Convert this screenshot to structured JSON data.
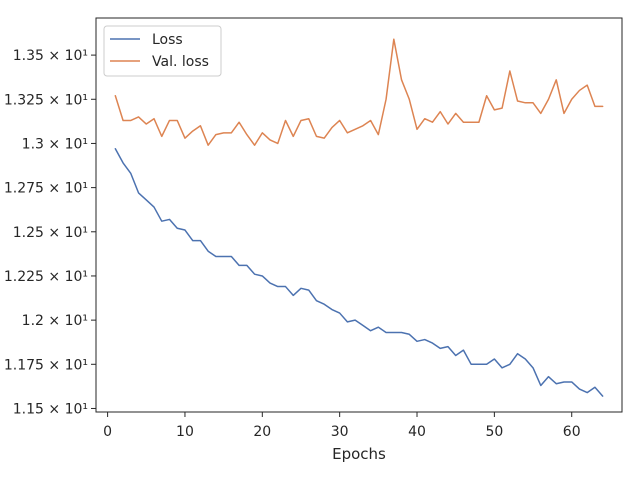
{
  "chart_data": {
    "type": "line",
    "title": "",
    "xlabel": "Epochs",
    "ylabel": "",
    "xlim": [
      -1.5,
      66.5
    ],
    "ylim": [
      11.48,
      13.71
    ],
    "xticks": [
      0,
      10,
      20,
      30,
      40,
      50,
      60
    ],
    "xtick_labels": [
      "0",
      "10",
      "20",
      "30",
      "40",
      "50",
      "60"
    ],
    "yticks": [
      11.5,
      11.75,
      12.0,
      12.25,
      12.5,
      12.75,
      13.0,
      13.25,
      13.5
    ],
    "ytick_labels": [
      "1.15 × 10¹",
      "1.175 × 10¹",
      "1.2 × 10¹",
      "1.225 × 10¹",
      "1.25 × 10¹",
      "1.275 × 10¹",
      "1.3 × 10¹",
      "1.325 × 10¹",
      "1.35 × 10¹"
    ],
    "grid": false,
    "legend_position": "top-left",
    "series": [
      {
        "name": "Loss",
        "color": "#4c72b0",
        "x": [
          1,
          2,
          3,
          4,
          5,
          6,
          7,
          8,
          9,
          10,
          11,
          12,
          13,
          14,
          15,
          16,
          17,
          18,
          19,
          20,
          21,
          22,
          23,
          24,
          25,
          26,
          27,
          28,
          29,
          30,
          31,
          32,
          33,
          34,
          35,
          36,
          37,
          38,
          39,
          40,
          41,
          42,
          43,
          44,
          45,
          46,
          47,
          48,
          49,
          50,
          51,
          52,
          53,
          54,
          55,
          56,
          57,
          58,
          59,
          60,
          61,
          62,
          63,
          64
        ],
        "values": [
          12.97,
          12.89,
          12.83,
          12.72,
          12.68,
          12.64,
          12.56,
          12.57,
          12.52,
          12.51,
          12.45,
          12.45,
          12.39,
          12.36,
          12.36,
          12.36,
          12.31,
          12.31,
          12.26,
          12.25,
          12.21,
          12.19,
          12.19,
          12.14,
          12.18,
          12.17,
          12.11,
          12.09,
          12.06,
          12.04,
          11.99,
          12.0,
          11.97,
          11.94,
          11.96,
          11.93,
          11.93,
          11.93,
          11.92,
          11.88,
          11.89,
          11.87,
          11.84,
          11.85,
          11.8,
          11.83,
          11.75,
          11.75,
          11.75,
          11.78,
          11.73,
          11.75,
          11.81,
          11.78,
          11.73,
          11.63,
          11.68,
          11.64,
          11.65,
          11.65,
          11.61,
          11.59,
          11.62,
          11.57
        ]
      },
      {
        "name": "Val. loss",
        "color": "#dd8452",
        "x": [
          1,
          2,
          3,
          4,
          5,
          6,
          7,
          8,
          9,
          10,
          11,
          12,
          13,
          14,
          15,
          16,
          17,
          18,
          19,
          20,
          21,
          22,
          23,
          24,
          25,
          26,
          27,
          28,
          29,
          30,
          31,
          32,
          33,
          34,
          35,
          36,
          37,
          38,
          39,
          40,
          41,
          42,
          43,
          44,
          45,
          46,
          47,
          48,
          49,
          50,
          51,
          52,
          53,
          54,
          55,
          56,
          57,
          58,
          59,
          60,
          61,
          62,
          63,
          64
        ],
        "values": [
          13.27,
          13.13,
          13.13,
          13.15,
          13.11,
          13.14,
          13.04,
          13.13,
          13.13,
          13.03,
          13.07,
          13.1,
          12.99,
          13.05,
          13.06,
          13.06,
          13.12,
          13.05,
          12.99,
          13.06,
          13.02,
          13.0,
          13.13,
          13.04,
          13.13,
          13.14,
          13.04,
          13.03,
          13.09,
          13.13,
          13.06,
          13.08,
          13.1,
          13.13,
          13.05,
          13.25,
          13.59,
          13.36,
          13.25,
          13.08,
          13.14,
          13.12,
          13.18,
          13.11,
          13.17,
          13.12,
          13.12,
          13.12,
          13.27,
          13.19,
          13.2,
          13.41,
          13.24,
          13.23,
          13.23,
          13.17,
          13.25,
          13.36,
          13.17,
          13.25,
          13.3,
          13.33,
          13.21,
          13.21
        ]
      }
    ]
  }
}
